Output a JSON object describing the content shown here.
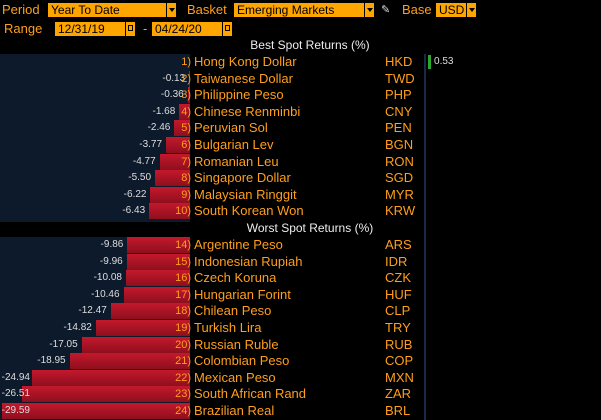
{
  "toolbar": {
    "period_label": "Period",
    "period_value": "Year To Date",
    "basket_label": "Basket",
    "basket_value": "Emerging Markets",
    "base_label": "Base",
    "base_value": "USD",
    "range_label": "Range",
    "range_start": "12/31/19",
    "range_sep": "-",
    "range_end": "04/24/20"
  },
  "sections": {
    "best_title": "Best Spot Returns (%)",
    "worst_title": "Worst Spot Returns (%)"
  },
  "chart_data": {
    "type": "bar",
    "best": [
      {
        "rank": "1)",
        "name": "Hong Kong Dollar",
        "code": "HKD",
        "value": 0.53
      },
      {
        "rank": "2)",
        "name": "Taiwanese Dollar",
        "code": "TWD",
        "value": -0.13
      },
      {
        "rank": "3)",
        "name": "Philippine Peso",
        "code": "PHP",
        "value": -0.36
      },
      {
        "rank": "4)",
        "name": "Chinese Renminbi",
        "code": "CNY",
        "value": -1.68
      },
      {
        "rank": "5)",
        "name": "Peruvian Sol",
        "code": "PEN",
        "value": -2.46
      },
      {
        "rank": "6)",
        "name": "Bulgarian Lev",
        "code": "BGN",
        "value": -3.77
      },
      {
        "rank": "7)",
        "name": "Romanian Leu",
        "code": "RON",
        "value": -4.77
      },
      {
        "rank": "8)",
        "name": "Singapore Dollar",
        "code": "SGD",
        "value": -5.5
      },
      {
        "rank": "9)",
        "name": "Malaysian Ringgit",
        "code": "MYR",
        "value": -6.22
      },
      {
        "rank": "10)",
        "name": "South Korean Won",
        "code": "KRW",
        "value": -6.43
      }
    ],
    "worst": [
      {
        "rank": "14)",
        "name": "Argentine Peso",
        "code": "ARS",
        "value": -9.86
      },
      {
        "rank": "15)",
        "name": "Indonesian Rupiah",
        "code": "IDR",
        "value": -9.96
      },
      {
        "rank": "16)",
        "name": "Czech Koruna",
        "code": "CZK",
        "value": -10.08
      },
      {
        "rank": "17)",
        "name": "Hungarian Forint",
        "code": "HUF",
        "value": -10.46
      },
      {
        "rank": "18)",
        "name": "Chilean Peso",
        "code": "CLP",
        "value": -12.47
      },
      {
        "rank": "19)",
        "name": "Turkish Lira",
        "code": "TRY",
        "value": -14.82
      },
      {
        "rank": "20)",
        "name": "Russian Ruble",
        "code": "RUB",
        "value": -17.05
      },
      {
        "rank": "21)",
        "name": "Colombian Peso",
        "code": "COP",
        "value": -18.95
      },
      {
        "rank": "22)",
        "name": "Mexican Peso",
        "code": "MXN",
        "value": -24.94
      },
      {
        "rank": "23)",
        "name": "South African Rand",
        "code": "ZAR",
        "value": -26.51
      },
      {
        "rank": "24)",
        "name": "Brazilian Real",
        "code": "BRL",
        "value": -29.59
      }
    ],
    "neg_max": 29.59,
    "pos_max": 29.59,
    "colors": {
      "negative": "#c4182c",
      "positive": "#2aaa2a",
      "background": "#0d1a2c"
    }
  }
}
